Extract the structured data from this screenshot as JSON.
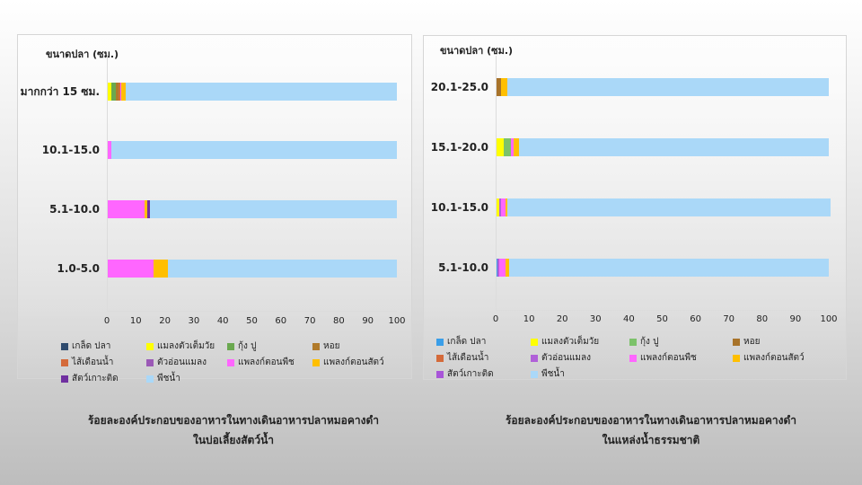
{
  "legend_labels": {
    "fish_scales": "เกล็ด ปลา",
    "adult_insects": "แมลงตัวเต็มวัย",
    "shrimp_crab": "กุ้ง ปู",
    "snails": "หอย",
    "worms": "ไส้เดือนน้ำ",
    "insect_larvae": "ตัวอ่อนแมลง",
    "phytoplankton": "แพลงก์ตอนพืช",
    "zooplankton": "แพลงก์ตอนสัตว์",
    "periphyton": "สัตว์เกาะติด",
    "aquatic_plants": "พืชน้ำ"
  },
  "chart_data": [
    {
      "type": "bar",
      "orientation": "horizontal",
      "stacked": true,
      "title": "ร้อยละองค์ประกอบของอาหารในทางเดินอาหารปลาหมอคางดำ ในบ่อเลี้ยงสัตว์น้ำ",
      "ylabel": "ขนาดปลา (ซม.)",
      "xlabel": "",
      "xlim": [
        0,
        100
      ],
      "xticks": [
        0,
        10,
        20,
        30,
        40,
        50,
        60,
        70,
        80,
        90,
        100
      ],
      "categories": [
        "มากกว่า 15 ซม.",
        "10.1-15.0",
        "5.1-10.0",
        "1.0-5.0"
      ],
      "legend_position": "bottom",
      "series": [
        {
          "name": "เกล็ด ปลา",
          "color": "#2f4b6e",
          "values": [
            0,
            0,
            0,
            0
          ]
        },
        {
          "name": "แมลงตัวเต็มวัย",
          "color": "#ffff00",
          "values": [
            1.5,
            0,
            0,
            0
          ]
        },
        {
          "name": "กุ้ง ปู",
          "color": "#6aa84f",
          "values": [
            1.5,
            0,
            0,
            0
          ]
        },
        {
          "name": "หอย",
          "color": "#b07a2a",
          "values": [
            1,
            0,
            0,
            0
          ]
        },
        {
          "name": "ไส้เดือนน้ำ",
          "color": "#d46a3a",
          "values": [
            0.5,
            0,
            0,
            0
          ]
        },
        {
          "name": "ตัวอ่อนแมลง",
          "color": "#9b59b6",
          "values": [
            0,
            0,
            0,
            0
          ]
        },
        {
          "name": "แพลงก์ตอนพืช",
          "color": "#ff66ff",
          "values": [
            0.5,
            1.5,
            13,
            16
          ]
        },
        {
          "name": "แพลงก์ตอนสัตว์",
          "color": "#ffbf00",
          "values": [
            1.5,
            0,
            1,
            5
          ]
        },
        {
          "name": "สัตว์เกาะติด",
          "color": "#7030a0",
          "values": [
            0,
            0,
            1,
            0
          ]
        },
        {
          "name": "พืชน้ำ",
          "color": "#aad8f8",
          "values": [
            93.5,
            98.5,
            85,
            79
          ]
        }
      ]
    },
    {
      "type": "bar",
      "orientation": "horizontal",
      "stacked": true,
      "title": "ร้อยละองค์ประกอบของอาหารในทางเดินอาหารปลาหมอคางดำ ในแหล่งน้ำธรรมชาติ",
      "ylabel": "ขนาดปลา (ซม.)",
      "xlabel": "",
      "xlim": [
        0,
        100
      ],
      "xticks": [
        0,
        10,
        20,
        30,
        40,
        50,
        60,
        70,
        80,
        90,
        100
      ],
      "categories": [
        "20.1-25.0",
        "15.1-20.0",
        "10.1-15.0",
        "5.1-10.0"
      ],
      "legend_position": "bottom",
      "series": [
        {
          "name": "เกล็ด ปลา",
          "color": "#3a9ee8",
          "values": [
            0,
            0,
            0,
            0.5
          ]
        },
        {
          "name": "แมลงตัวเต็มวัย",
          "color": "#ffff00",
          "values": [
            0,
            2.5,
            1,
            0
          ]
        },
        {
          "name": "กุ้ง ปู",
          "color": "#7cc26a",
          "values": [
            0,
            2,
            0,
            0
          ]
        },
        {
          "name": "หอย",
          "color": "#a8732a",
          "values": [
            1.5,
            0,
            0,
            0
          ]
        },
        {
          "name": "ไส้เดือนน้ำ",
          "color": "#d46a3a",
          "values": [
            0,
            0,
            0,
            0
          ]
        },
        {
          "name": "ตัวอ่อนแมลง",
          "color": "#b060d8",
          "values": [
            0,
            0,
            0.5,
            0.5
          ]
        },
        {
          "name": "แพลงก์ตอนพืช",
          "color": "#ff66ff",
          "values": [
            0,
            1,
            1.5,
            2
          ]
        },
        {
          "name": "แพลงก์ตอนสัตว์",
          "color": "#ffbf00",
          "values": [
            2,
            1.5,
            0.5,
            1
          ]
        },
        {
          "name": "สัตว์เกาะติด",
          "color": "#a855d8",
          "values": [
            0,
            0,
            0,
            0
          ]
        },
        {
          "name": "พืชน้ำ",
          "color": "#aad8f8",
          "values": [
            96.5,
            93,
            97,
            96
          ]
        }
      ]
    }
  ],
  "captions": {
    "left_line1": "ร้อยละองค์ประกอบของอาหารในทางเดินอาหารปลาหมอคางดำ",
    "left_line2": "ในบ่อเลี้ยงสัตว์น้ำ",
    "right_line1": "ร้อยละองค์ประกอบของอาหารในทางเดินอาหารปลาหมอคางดำ",
    "right_line2": "ในแหล่งน้ำธรรมชาติ"
  }
}
